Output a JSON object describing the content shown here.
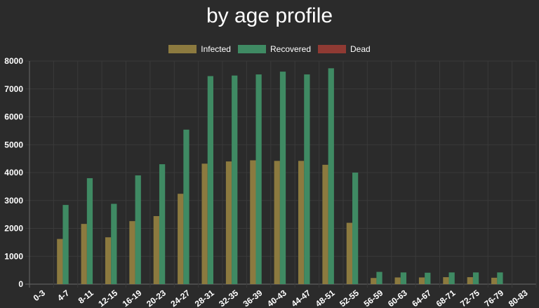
{
  "chart_data": {
    "type": "bar",
    "title": "by age profile",
    "categories": [
      "0-3",
      "4-7",
      "8-11",
      "12-15",
      "16-19",
      "20-23",
      "24-27",
      "28-31",
      "32-35",
      "36-39",
      "40-43",
      "44-47",
      "48-51",
      "52-55",
      "56-59",
      "60-63",
      "64-67",
      "68-71",
      "72-75",
      "76-79",
      "80-83"
    ],
    "series": [
      {
        "name": "Infected",
        "color": "#8c7a3f",
        "values": [
          0,
          1620,
          2160,
          1680,
          2260,
          2440,
          3240,
          4320,
          4400,
          4440,
          4420,
          4420,
          4280,
          2200,
          220,
          240,
          240,
          250,
          250,
          230,
          0
        ]
      },
      {
        "name": "Recovered",
        "color": "#3f8a63",
        "values": [
          0,
          2840,
          3800,
          2880,
          3900,
          4300,
          5540,
          7460,
          7480,
          7520,
          7620,
          7520,
          7740,
          4000,
          440,
          420,
          410,
          420,
          420,
          420,
          0
        ]
      },
      {
        "name": "Dead",
        "color": "#8f3a33",
        "values": [
          0,
          0,
          0,
          0,
          0,
          0,
          0,
          0,
          0,
          0,
          0,
          0,
          0,
          0,
          0,
          0,
          0,
          0,
          0,
          0,
          0
        ]
      }
    ],
    "ylim": [
      0,
      8000
    ],
    "yticks": [
      0,
      1000,
      2000,
      3000,
      4000,
      5000,
      6000,
      7000,
      8000
    ],
    "grid": true,
    "legend_position": "top-center",
    "xlabel": "",
    "ylabel": ""
  }
}
